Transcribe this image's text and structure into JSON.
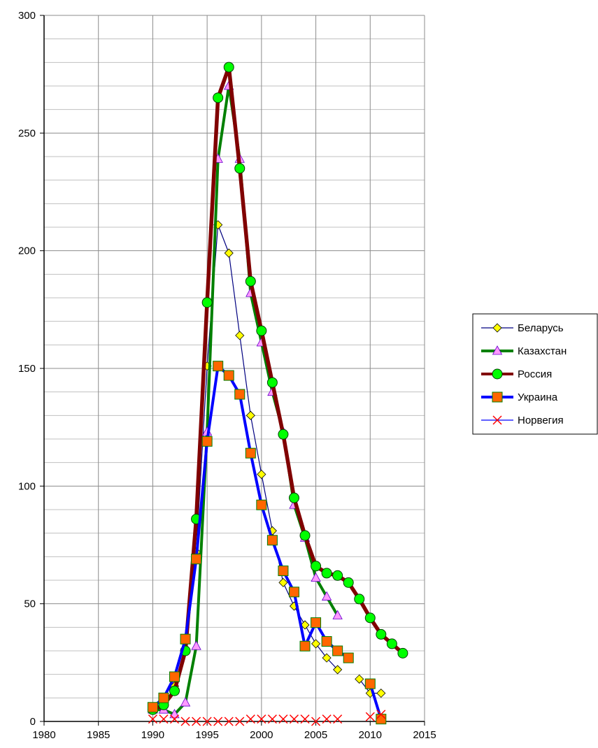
{
  "chart_data": {
    "type": "line",
    "title": "",
    "xlabel": "",
    "ylabel": "",
    "xlim": [
      1980,
      2015
    ],
    "ylim": [
      0,
      300
    ],
    "x_ticks": [
      1980,
      1985,
      1990,
      1995,
      2000,
      2005,
      2010,
      2015
    ],
    "y_ticks": [
      0,
      50,
      100,
      150,
      200,
      250,
      300
    ],
    "grid": {
      "major": true,
      "minor_y_step": 10
    },
    "legend_position": "right",
    "series": [
      {
        "name": "Беларусь",
        "color": "#000080",
        "marker": "diamond",
        "marker_fill": "#ffff00",
        "line_width": "thin",
        "points": [
          [
            1990,
            5
          ],
          [
            1991,
            6
          ],
          [
            1992,
            15
          ],
          [
            1993,
            30
          ],
          [
            1994,
            72
          ],
          [
            1995,
            151
          ],
          [
            1996,
            211
          ],
          [
            1997,
            199
          ],
          [
            1998,
            164
          ],
          [
            1999,
            130
          ],
          [
            2000,
            105
          ],
          [
            2001,
            81
          ],
          [
            2002,
            59
          ],
          [
            2003,
            49
          ],
          [
            2004,
            41
          ],
          [
            2005,
            33
          ],
          [
            2006,
            27
          ],
          [
            2007,
            22
          ],
          [
            null,
            null
          ],
          [
            2009,
            18
          ],
          [
            2010,
            12
          ],
          [
            2011,
            12
          ]
        ]
      },
      {
        "name": "Казахстан",
        "color": "#008000",
        "marker": "triangle",
        "marker_fill": "#ff99ff",
        "line_width": "thick",
        "points": [
          [
            1990,
            5
          ],
          [
            1991,
            5
          ],
          [
            1992,
            3
          ],
          [
            1993,
            8
          ],
          [
            1994,
            32
          ],
          [
            1995,
            123
          ],
          [
            1996,
            239
          ],
          [
            1997,
            270
          ],
          [
            1998,
            239
          ],
          [
            1999,
            182
          ],
          [
            2000,
            161
          ],
          [
            2001,
            140
          ],
          [
            2002,
            123
          ],
          [
            2003,
            92
          ],
          [
            2004,
            78
          ],
          [
            2005,
            61
          ],
          [
            2006,
            53
          ],
          [
            2007,
            45
          ]
        ]
      },
      {
        "name": "Россия",
        "color": "#800000",
        "marker": "circle",
        "marker_fill": "#00ff00",
        "line_width": "thicker",
        "points": [
          [
            1990,
            5
          ],
          [
            1991,
            7
          ],
          [
            1992,
            13
          ],
          [
            1993,
            30
          ],
          [
            1994,
            86
          ],
          [
            1995,
            178
          ],
          [
            1996,
            265
          ],
          [
            1997,
            278
          ],
          [
            1998,
            235
          ],
          [
            1999,
            187
          ],
          [
            2000,
            166
          ],
          [
            2001,
            144
          ],
          [
            2002,
            122
          ],
          [
            2003,
            95
          ],
          [
            2004,
            79
          ],
          [
            2005,
            66
          ],
          [
            2006,
            63
          ],
          [
            2007,
            62
          ],
          [
            2008,
            59
          ],
          [
            2009,
            52
          ],
          [
            2010,
            44
          ],
          [
            2011,
            37
          ],
          [
            2012,
            33
          ],
          [
            2013,
            29
          ]
        ]
      },
      {
        "name": "Украина",
        "color": "#0000ff",
        "marker": "square",
        "marker_fill": "#ff6600",
        "line_width": "thick",
        "points": [
          [
            1990,
            6
          ],
          [
            1991,
            10
          ],
          [
            1992,
            19
          ],
          [
            1993,
            35
          ],
          [
            1994,
            69
          ],
          [
            1995,
            119
          ],
          [
            1996,
            151
          ],
          [
            1997,
            147
          ],
          [
            1998,
            139
          ],
          [
            1999,
            114
          ],
          [
            2000,
            92
          ],
          [
            2001,
            77
          ],
          [
            2002,
            64
          ],
          [
            2003,
            55
          ],
          [
            2004,
            32
          ],
          [
            2005,
            42
          ],
          [
            2006,
            34
          ],
          [
            2007,
            30
          ],
          [
            2008,
            27
          ],
          [
            null,
            null
          ],
          [
            2010,
            16
          ],
          [
            2011,
            1
          ]
        ]
      },
      {
        "name": "Норвегия",
        "color": "#0000ff",
        "marker": "x",
        "marker_fill": "#ff0000",
        "line_width": "thin",
        "points": [
          [
            1990,
            1
          ],
          [
            1991,
            1
          ],
          [
            1992,
            1
          ],
          [
            1993,
            0
          ],
          [
            1994,
            0
          ],
          [
            1995,
            0
          ],
          [
            1996,
            0
          ],
          [
            1997,
            0
          ],
          [
            1998,
            0
          ],
          [
            1999,
            1
          ],
          [
            2000,
            1
          ],
          [
            2001,
            1
          ],
          [
            2002,
            1
          ],
          [
            2003,
            1
          ],
          [
            2004,
            1
          ],
          [
            2005,
            0
          ],
          [
            2006,
            1
          ],
          [
            2007,
            1
          ],
          [
            null,
            null
          ],
          [
            2010,
            2
          ],
          [
            2011,
            3
          ]
        ]
      }
    ]
  }
}
